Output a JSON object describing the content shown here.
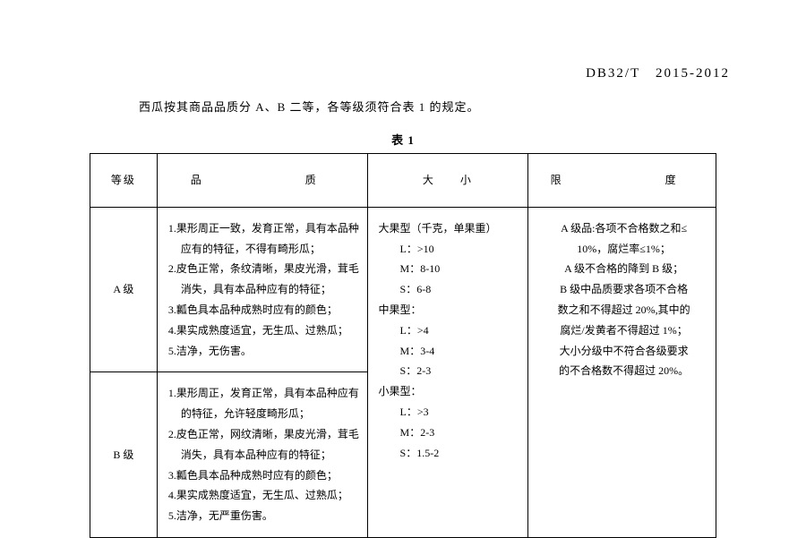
{
  "document": {
    "number": "DB32/T　2015-2012",
    "intro": "西瓜按其商品品质分 A、B 二等，各等级须符合表 1 的规定。",
    "table_title": "表 1"
  },
  "table": {
    "headers": {
      "grade": "等级",
      "quality": "品　　　质",
      "size": "大　　小",
      "limit": "限　　　度"
    },
    "rowA": {
      "grade": "A 级",
      "quality": {
        "l1": "1.果形周正一致，发育正常，具有本品种",
        "l1b": "应有的特征，不得有畸形瓜；",
        "l2": "2.皮色正常，条纹清晰，果皮光滑，茸毛",
        "l2b": "消失，具有本品种应有的特征；",
        "l3": "3.瓤色具本品种成熟时应有的颜色；",
        "l4": "4.果实成熟度适宜，无生瓜、过熟瓜；",
        "l5": "5.洁净，无伤害。"
      }
    },
    "rowB": {
      "grade": "B 级",
      "quality": {
        "l1": "1.果形周正，发育正常，具有本品种应有",
        "l1b": "的特征，允许轻度畸形瓜；",
        "l2": "2.皮色正常，网纹清晰，果皮光滑，茸毛",
        "l2b": "消失，具有本品种应有的特征；",
        "l3": "3.瓤色具本品种成熟时应有的颜色；",
        "l4": "4.果实成熟度适宜，无生瓜、过熟瓜；",
        "l5": "5.洁净，无严重伤害。"
      }
    },
    "size": {
      "h1": "大果型（千克，单果重）",
      "l1": "L：>10",
      "l2": "M：8-10",
      "l3": "S：6-8",
      "h2": "中果型：",
      "l4": "L：>4",
      "l5": "M：3-4",
      "l6": "S：2-3",
      "h3": "小果型：",
      "l7": "L：>3",
      "l8": "M：2-3",
      "l9": "S：1.5-2"
    },
    "limit": {
      "l1": "A 级品:各项不合格数之和≤",
      "l2": "10%，腐烂率≤1%；",
      "l3": "A 级不合格的降到 B 级；",
      "l4": "B 级中品质要求各项不合格",
      "l5": "数之和不得超过 20%,其中的",
      "l6": "腐烂/发黄者不得超过 1%；",
      "l7": "大小分级中不符合各级要求",
      "l8": "的不合格数不得超过 20%。"
    }
  }
}
